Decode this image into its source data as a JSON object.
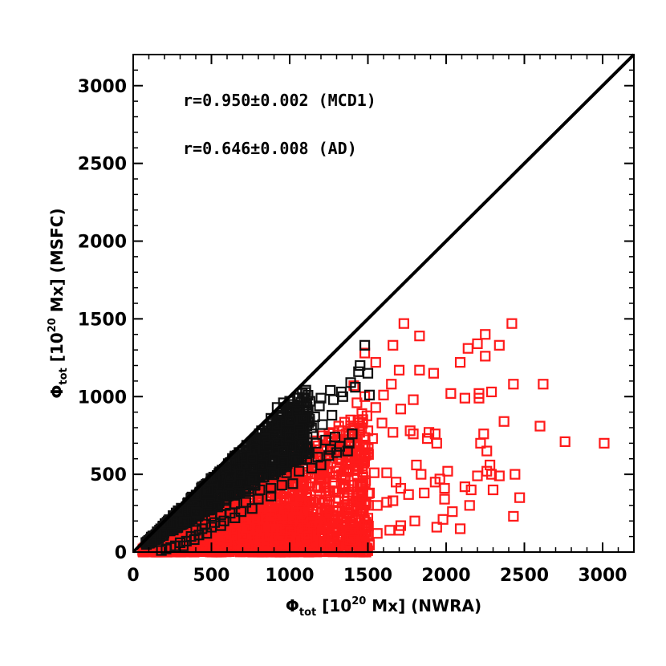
{
  "chart_data": {
    "type": "scatter",
    "title": "",
    "xlabel": {
      "main": "Φ",
      "sub": "tot",
      "pre": " [10",
      "sup": "20",
      "post": " Mx] (NWRA)"
    },
    "ylabel": {
      "main": "Φ",
      "sub": "tot",
      "pre": " [10",
      "sup": "20",
      "post": " Mx] (MSFC)"
    },
    "xlim": [
      0,
      3200
    ],
    "ylim": [
      0,
      3200
    ],
    "xticks": [
      0,
      500,
      1000,
      1500,
      2000,
      2500,
      3000
    ],
    "yticks": [
      0,
      500,
      1000,
      1500,
      2000,
      2500,
      3000
    ],
    "xtick_labels": [
      "0",
      "500",
      "1000",
      "1500",
      "2000",
      "2500",
      "3000"
    ],
    "ytick_labels": [
      "0",
      "500",
      "1000",
      "1500",
      "2000",
      "2500",
      "3000"
    ],
    "reference_line": {
      "description": "y = x",
      "color": "#000000"
    },
    "annotations": [
      {
        "text": "r=0.950±0.002 (MCD1)"
      },
      {
        "text": "r=0.646±0.008 (AD)"
      }
    ],
    "series": [
      {
        "color": "#ff1a1a",
        "marker": "square",
        "points": [
          [
            1730,
            1470
          ],
          [
            1830,
            1390
          ],
          [
            2250,
            1400
          ],
          [
            2420,
            1470
          ],
          [
            2140,
            1310
          ],
          [
            2200,
            1340
          ],
          [
            1660,
            1330
          ],
          [
            2340,
            1330
          ],
          [
            2250,
            1260
          ],
          [
            2090,
            1220
          ],
          [
            1480,
            1280
          ],
          [
            1550,
            1220
          ],
          [
            1700,
            1170
          ],
          [
            1830,
            1170
          ],
          [
            1920,
            1150
          ],
          [
            2620,
            1080
          ],
          [
            1650,
            1080
          ],
          [
            2430,
            1080
          ],
          [
            2290,
            1030
          ],
          [
            2210,
            1020
          ],
          [
            2030,
            1020
          ],
          [
            2120,
            990
          ],
          [
            1790,
            980
          ],
          [
            2210,
            990
          ],
          [
            1600,
            1010
          ],
          [
            1410,
            1070
          ],
          [
            1480,
            1000
          ],
          [
            1430,
            960
          ],
          [
            1550,
            930
          ],
          [
            1710,
            920
          ],
          [
            1390,
            850
          ],
          [
            2370,
            840
          ],
          [
            1590,
            830
          ],
          [
            1500,
            780
          ],
          [
            1360,
            760
          ],
          [
            1660,
            770
          ],
          [
            1770,
            780
          ],
          [
            1790,
            760
          ],
          [
            1890,
            770
          ],
          [
            1880,
            730
          ],
          [
            1930,
            760
          ],
          [
            2240,
            760
          ],
          [
            1940,
            700
          ],
          [
            2220,
            700
          ],
          [
            2600,
            810
          ],
          [
            2760,
            710
          ],
          [
            3010,
            700
          ],
          [
            1530,
            730
          ],
          [
            1470,
            680
          ],
          [
            1500,
            640
          ],
          [
            1420,
            630
          ],
          [
            2260,
            650
          ],
          [
            2280,
            560
          ],
          [
            1810,
            560
          ],
          [
            1540,
            510
          ],
          [
            1620,
            510
          ],
          [
            2010,
            520
          ],
          [
            2260,
            520
          ],
          [
            2290,
            500
          ],
          [
            2200,
            490
          ],
          [
            1840,
            500
          ],
          [
            2440,
            500
          ],
          [
            2340,
            490
          ],
          [
            1960,
            470
          ],
          [
            1930,
            450
          ],
          [
            2120,
            420
          ],
          [
            2160,
            400
          ],
          [
            1990,
            410
          ],
          [
            2300,
            400
          ],
          [
            1860,
            380
          ],
          [
            1710,
            410
          ],
          [
            1680,
            450
          ],
          [
            1760,
            370
          ],
          [
            1660,
            330
          ],
          [
            1620,
            320
          ],
          [
            1560,
            300
          ],
          [
            1480,
            310
          ],
          [
            1510,
            380
          ],
          [
            1440,
            360
          ],
          [
            1400,
            330
          ],
          [
            2470,
            350
          ],
          [
            1990,
            340
          ],
          [
            2150,
            300
          ],
          [
            2040,
            260
          ],
          [
            2430,
            230
          ],
          [
            1980,
            210
          ],
          [
            1800,
            200
          ],
          [
            1710,
            170
          ],
          [
            1640,
            140
          ],
          [
            1560,
            120
          ],
          [
            1700,
            140
          ],
          [
            1940,
            160
          ],
          [
            2090,
            150
          ],
          [
            1450,
            260
          ],
          [
            1380,
            270
          ]
        ]
      },
      {
        "color": "#111111",
        "marker": "square",
        "points": [
          [
            1480,
            1330
          ],
          [
            1450,
            1200
          ],
          [
            1440,
            1160
          ],
          [
            1500,
            1150
          ],
          [
            1390,
            1090
          ],
          [
            1420,
            1060
          ],
          [
            1330,
            1030
          ],
          [
            1260,
            1040
          ],
          [
            1510,
            1010
          ],
          [
            1340,
            1000
          ],
          [
            1200,
            990
          ],
          [
            1130,
            970
          ],
          [
            1060,
            990
          ],
          [
            1000,
            970
          ],
          [
            960,
            960
          ],
          [
            920,
            930
          ],
          [
            1280,
            980
          ],
          [
            1190,
            940
          ],
          [
            1110,
            930
          ],
          [
            1050,
            910
          ],
          [
            990,
            900
          ],
          [
            940,
            880
          ],
          [
            880,
            860
          ],
          [
            1270,
            880
          ],
          [
            1160,
            870
          ],
          [
            1080,
            850
          ],
          [
            1000,
            840
          ],
          [
            920,
            820
          ],
          [
            860,
            800
          ],
          [
            820,
            780
          ],
          [
            1210,
            820
          ],
          [
            1140,
            800
          ],
          [
            1060,
            790
          ],
          [
            980,
            770
          ],
          [
            900,
            750
          ],
          [
            840,
            730
          ],
          [
            780,
            720
          ],
          [
            1290,
            740
          ],
          [
            1230,
            720
          ],
          [
            1170,
            700
          ],
          [
            1090,
            690
          ],
          [
            1010,
            680
          ],
          [
            930,
            670
          ],
          [
            870,
            650
          ],
          [
            810,
            640
          ],
          [
            750,
            630
          ],
          [
            700,
            610
          ],
          [
            1320,
            680
          ],
          [
            1370,
            650
          ],
          [
            1300,
            640
          ],
          [
            1250,
            620
          ],
          [
            1180,
            610
          ],
          [
            1110,
            600
          ],
          [
            1040,
            590
          ],
          [
            960,
            580
          ],
          [
            880,
            570
          ],
          [
            820,
            560
          ],
          [
            760,
            550
          ],
          [
            700,
            540
          ],
          [
            650,
            530
          ],
          [
            1200,
            560
          ],
          [
            1140,
            540
          ],
          [
            1060,
            520
          ],
          [
            980,
            510
          ],
          [
            900,
            500
          ],
          [
            830,
            480
          ],
          [
            770,
            470
          ],
          [
            710,
            460
          ],
          [
            660,
            450
          ],
          [
            610,
            440
          ],
          [
            1020,
            440
          ],
          [
            950,
            430
          ],
          [
            880,
            410
          ],
          [
            810,
            400
          ],
          [
            740,
            390
          ],
          [
            680,
            380
          ],
          [
            620,
            370
          ],
          [
            570,
            360
          ],
          [
            880,
            360
          ],
          [
            800,
            340
          ],
          [
            720,
            320
          ],
          [
            650,
            310
          ],
          [
            590,
            300
          ],
          [
            540,
            290
          ],
          [
            760,
            280
          ],
          [
            690,
            260
          ],
          [
            620,
            250
          ],
          [
            560,
            240
          ],
          [
            500,
            230
          ],
          [
            650,
            220
          ],
          [
            580,
            200
          ],
          [
            520,
            190
          ],
          [
            460,
            180
          ],
          [
            560,
            170
          ],
          [
            500,
            160
          ],
          [
            440,
            150
          ],
          [
            400,
            140
          ],
          [
            470,
            120
          ],
          [
            420,
            110
          ],
          [
            370,
            100
          ],
          [
            390,
            80
          ],
          [
            340,
            70
          ],
          [
            300,
            60
          ],
          [
            320,
            40
          ],
          [
            270,
            40
          ],
          [
            240,
            30
          ],
          [
            210,
            20
          ],
          [
            180,
            10
          ],
          [
            850,
            620
          ],
          [
            920,
            700
          ],
          [
            780,
            660
          ],
          [
            1000,
            740
          ],
          [
            1080,
            760
          ],
          [
            900,
            600
          ],
          [
            960,
            650
          ],
          [
            860,
            690
          ],
          [
            1150,
            760
          ],
          [
            720,
            560
          ],
          [
            760,
            600
          ],
          [
            680,
            500
          ],
          [
            620,
            480
          ],
          [
            1380,
            700
          ],
          [
            1260,
            660
          ],
          [
            1400,
            760
          ]
        ]
      }
    ]
  }
}
